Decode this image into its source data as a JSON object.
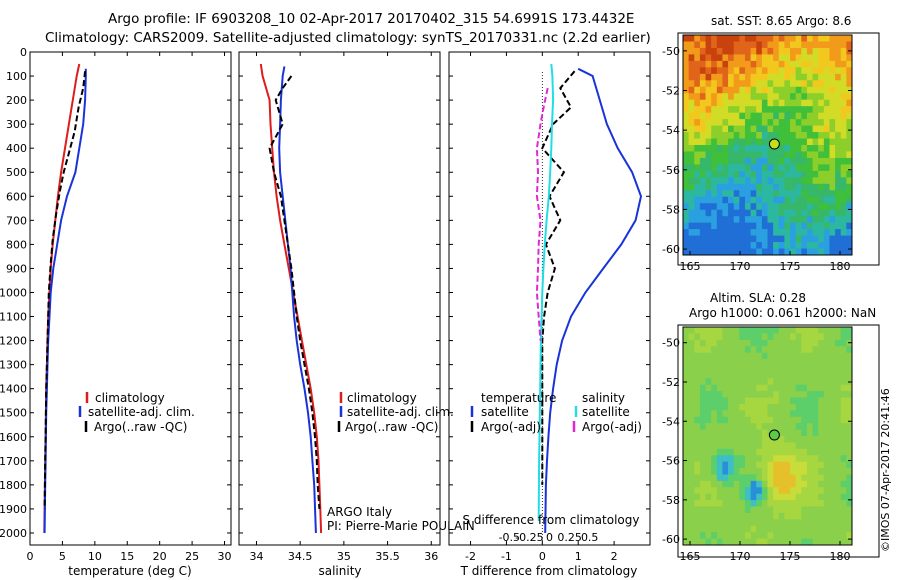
{
  "header": {
    "line1": "Argo profile: IF 6903208_10 02-Apr-2017 20170402_315 54.6991S 173.4432E",
    "line2": "Climatology: CARS2009. Satellite-adjusted climatology: synTS_20170331.nc (2.2d earlier)"
  },
  "credit": {
    "text": "©IMOS 07-Apr-2017 20:41:46",
    "argo_italy": "ARGO Italy",
    "pi": "PI: Pierre-Marie POULAIN"
  },
  "colors": {
    "climatology": "#dd1c1c",
    "satellite": "#1a33d9",
    "argo": "#000000",
    "sat_salinity": "#22dde6",
    "argo_salinity": "#e028d8"
  },
  "legend": {
    "climatology": "climatology",
    "satellite": "satellite-adj. clim.",
    "argo": "Argo(..raw -QC)",
    "diff_temperature": "temperature",
    "diff_salinity": "salinity",
    "diff_satellite": "satellite",
    "diff_argo": "Argo(-adj)"
  },
  "maps": {
    "sst_title": "sat. SST: 8.65 Argo: 8.6",
    "sla_title1": "Altim. SLA: 0.28",
    "sla_title2": "Argo h1000: 0.061 h2000: NaN",
    "xticks": [
      165,
      170,
      175,
      180
    ],
    "yticks": [
      -50,
      -52,
      -54,
      -56,
      -58,
      -60
    ],
    "float_lon": 173.44,
    "float_lat": -54.7
  },
  "chart_data": [
    {
      "type": "line",
      "xlabel": "temperature (deg C)",
      "xlim": [
        0,
        31
      ],
      "ylim": [
        2050,
        0
      ],
      "xticks": [
        0,
        5,
        10,
        15,
        20,
        25,
        30
      ],
      "yticks": [
        0,
        100,
        200,
        300,
        400,
        500,
        600,
        700,
        800,
        900,
        1000,
        1100,
        1200,
        1300,
        1400,
        1500,
        1600,
        1700,
        1800,
        1900,
        2000
      ],
      "series": [
        {
          "name": "climatology",
          "color": "#dd1c1c",
          "dash": false,
          "x": [
            7.6,
            7.2,
            6.6,
            6.0,
            5.4,
            4.8,
            4.3,
            3.9,
            3.5,
            3.2,
            3.0,
            2.8,
            2.7,
            2.6,
            2.5,
            2.45,
            2.4,
            2.35,
            2.3,
            2.25,
            2.2
          ],
          "y": [
            50,
            100,
            200,
            300,
            400,
            500,
            600,
            700,
            800,
            900,
            1000,
            1100,
            1200,
            1300,
            1400,
            1500,
            1600,
            1700,
            1800,
            1900,
            2000
          ]
        },
        {
          "name": "satellite-adj. clim.",
          "color": "#1a33d9",
          "dash": false,
          "x": [
            8.6,
            8.6,
            8.5,
            8.2,
            7.6,
            7.0,
            5.7,
            4.8,
            4.2,
            3.6,
            3.2,
            3.0,
            2.8,
            2.7,
            2.6,
            2.5,
            2.45,
            2.4,
            2.35,
            2.3,
            2.25
          ],
          "y": [
            70,
            100,
            200,
            300,
            400,
            500,
            600,
            700,
            800,
            900,
            1000,
            1100,
            1200,
            1300,
            1400,
            1500,
            1600,
            1700,
            1800,
            1900,
            2000
          ]
        },
        {
          "name": "Argo(..raw -QC)",
          "color": "#000000",
          "dash": true,
          "x": [
            8.5,
            8.2,
            7.5,
            6.9,
            6.0,
            5.2,
            4.6,
            4.0,
            3.5,
            3.2,
            2.9,
            2.8,
            2.7,
            2.6,
            2.5,
            2.45,
            2.4,
            2.35,
            2.3,
            2.25
          ],
          "y": [
            80,
            150,
            230,
            330,
            420,
            500,
            580,
            680,
            780,
            880,
            1000,
            1100,
            1200,
            1300,
            1400,
            1500,
            1600,
            1700,
            1800,
            1900
          ]
        }
      ]
    },
    {
      "type": "line",
      "xlabel": "salinity",
      "xlim": [
        33.8,
        36.1
      ],
      "ylim": [
        2050,
        0
      ],
      "xticks": [
        34,
        34.5,
        35,
        35.5,
        36
      ],
      "xticklabels": [
        "34",
        "34.5",
        "35",
        "35.5",
        "36"
      ],
      "series": [
        {
          "name": "climatology",
          "color": "#dd1c1c",
          "dash": false,
          "x": [
            34.05,
            34.07,
            34.15,
            34.16,
            34.18,
            34.2,
            34.23,
            34.27,
            34.32,
            34.37,
            34.42,
            34.47,
            34.52,
            34.57,
            34.62,
            34.66,
            34.69,
            34.71,
            34.72,
            34.73,
            34.74
          ],
          "y": [
            50,
            100,
            200,
            300,
            400,
            500,
            600,
            700,
            800,
            900,
            1000,
            1100,
            1200,
            1300,
            1400,
            1500,
            1600,
            1700,
            1800,
            1900,
            2000
          ]
        },
        {
          "name": "satellite-adj. clim.",
          "color": "#1a33d9",
          "dash": false,
          "x": [
            34.32,
            34.3,
            34.28,
            34.27,
            34.26,
            34.27,
            34.3,
            34.33,
            34.36,
            34.39,
            34.41,
            34.43,
            34.46,
            34.5,
            34.55,
            34.59,
            34.62,
            34.64,
            34.66,
            34.68
          ],
          "y": [
            60,
            100,
            200,
            300,
            400,
            500,
            600,
            700,
            800,
            900,
            1000,
            1100,
            1200,
            1300,
            1400,
            1500,
            1600,
            1700,
            1800,
            2000
          ]
        },
        {
          "name": "Argo(..raw -QC)",
          "color": "#000000",
          "dash": true,
          "x": [
            34.4,
            34.3,
            34.22,
            34.3,
            34.15,
            34.2,
            34.28,
            34.32,
            34.36,
            34.4,
            34.43,
            34.46,
            34.5,
            34.55,
            34.6,
            34.64,
            34.67,
            34.69,
            34.7,
            34.72
          ],
          "y": [
            100,
            150,
            200,
            300,
            400,
            500,
            600,
            700,
            800,
            900,
            1000,
            1100,
            1200,
            1300,
            1400,
            1500,
            1600,
            1700,
            1800,
            1900
          ]
        }
      ]
    },
    {
      "type": "line",
      "xlabel": "T difference from climatology",
      "xlabel_top": "S difference from climatology",
      "xlim": [
        -2.6,
        3.0
      ],
      "ylim": [
        2050,
        0
      ],
      "xticks": [
        -2,
        -1,
        0,
        1,
        2
      ],
      "xticklabels": [
        "-2",
        "-1",
        "0",
        "1",
        "2"
      ],
      "xticks_top": [
        -0.5,
        -0.25,
        0,
        0.25,
        0.5
      ],
      "xticklabels_top": [
        "-0.5",
        "-0.25",
        "0",
        "0.25",
        "0.5"
      ],
      "series": [
        {
          "name": "temperature satellite",
          "color": "#1a33d9",
          "dash": false,
          "x": [
            1.0,
            1.4,
            1.6,
            1.8,
            2.1,
            2.5,
            2.75,
            2.6,
            2.2,
            1.7,
            1.2,
            0.8,
            0.55,
            0.4,
            0.3,
            0.22,
            0.17,
            0.13,
            0.1,
            0.08
          ],
          "y": [
            70,
            100,
            200,
            300,
            400,
            500,
            600,
            700,
            800,
            900,
            1000,
            1100,
            1200,
            1300,
            1400,
            1500,
            1600,
            1700,
            1800,
            2000
          ]
        },
        {
          "name": "temperature Argo(-adj)",
          "color": "#000000",
          "dash": true,
          "x": [
            0.9,
            0.5,
            0.8,
            0.3,
            0.0,
            0.6,
            0.2,
            0.5,
            0.1,
            0.35,
            0.15,
            0.05,
            0.0,
            0.0,
            0.0,
            0.0,
            0.0,
            0.0,
            0.0
          ],
          "y": [
            80,
            150,
            230,
            300,
            400,
            500,
            600,
            700,
            800,
            900,
            1000,
            1100,
            1200,
            1300,
            1400,
            1500,
            1600,
            1700,
            1800
          ]
        },
        {
          "name": "salinity satellite",
          "color": "#22dde6",
          "dash": false,
          "x": [
            0.25,
            0.28,
            0.3,
            0.27,
            0.25,
            0.22,
            0.18,
            0.12,
            0.07,
            0.03,
            0.0,
            -0.02,
            -0.04,
            -0.05,
            -0.06,
            -0.07,
            -0.08,
            -0.09,
            -0.1
          ],
          "y": [
            50,
            100,
            200,
            300,
            400,
            500,
            600,
            700,
            800,
            900,
            1000,
            1100,
            1200,
            1300,
            1400,
            1500,
            1600,
            1700,
            1950
          ]
        },
        {
          "name": "salinity Argo(-adj)",
          "color": "#e028d8",
          "dash": true,
          "x": [
            0.15,
            0.05,
            -0.05,
            -0.15,
            -0.12,
            -0.15,
            -0.05,
            -0.1,
            -0.12,
            -0.15,
            -0.1,
            -0.05
          ],
          "y": [
            150,
            220,
            300,
            400,
            500,
            600,
            700,
            800,
            900,
            1000,
            1100,
            1200
          ]
        }
      ]
    }
  ]
}
